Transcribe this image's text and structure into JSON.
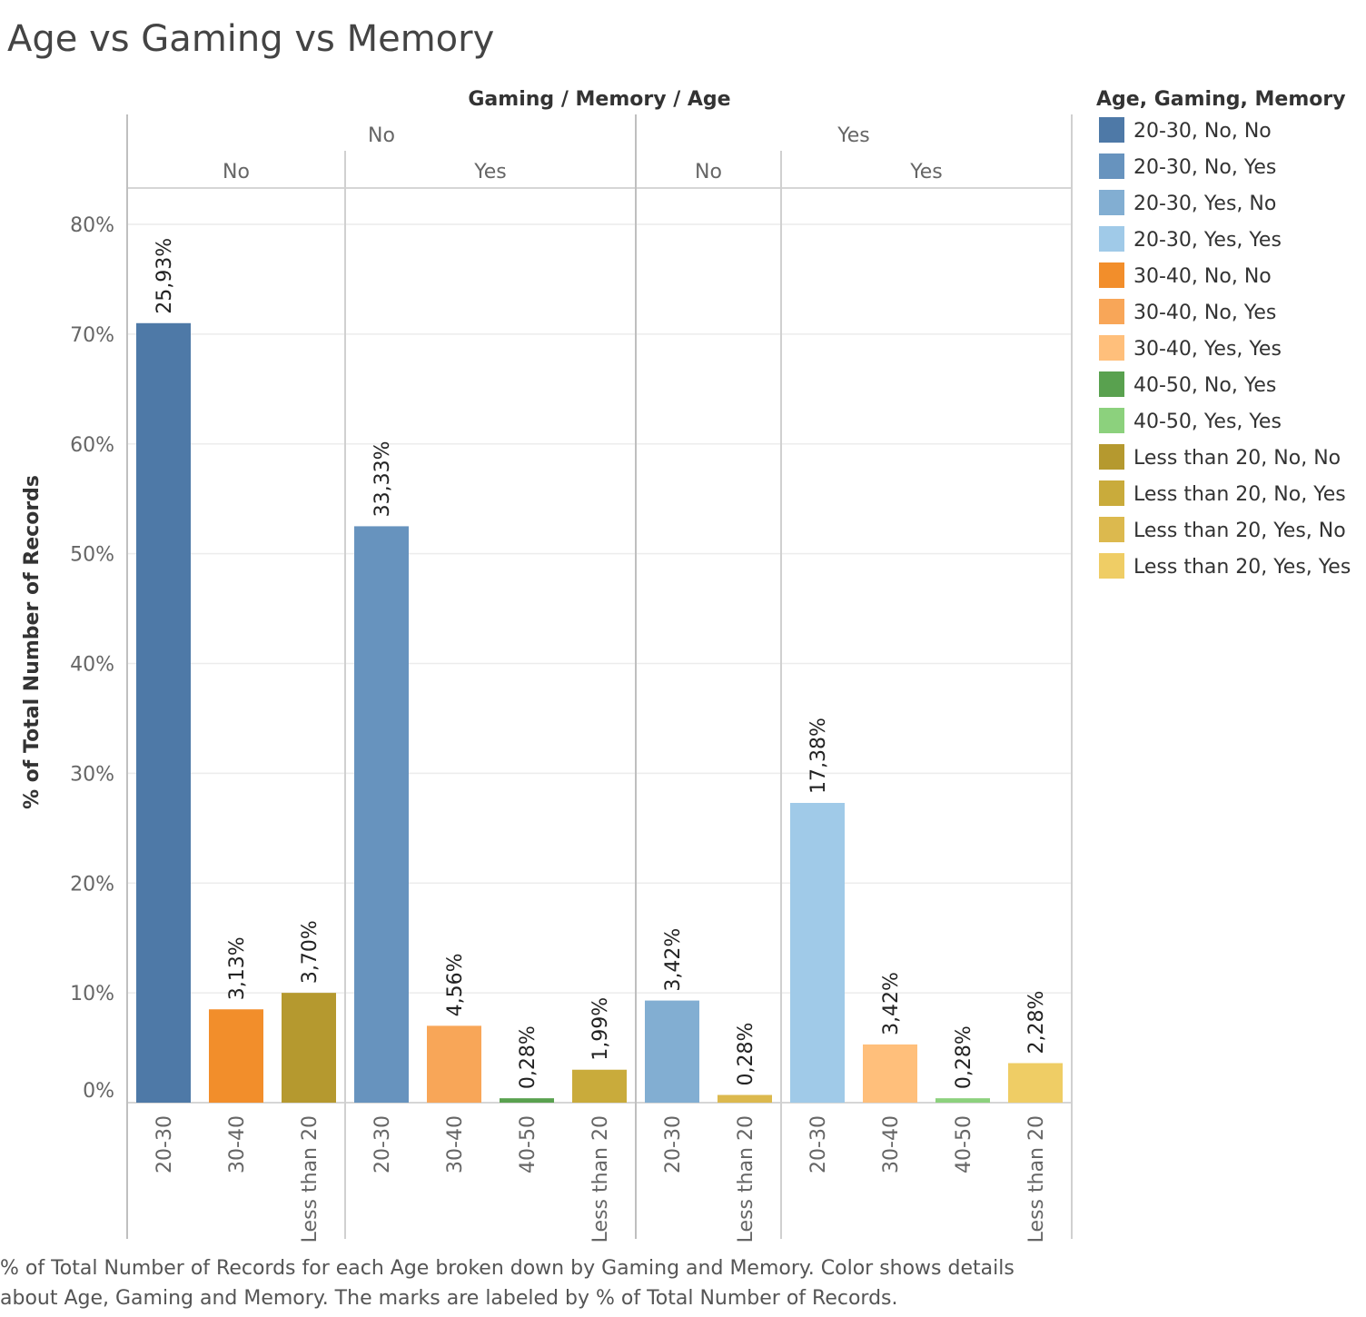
{
  "title": "Age vs Gaming vs Memory",
  "caption": "% of Total Number of Records for each Age broken down by Gaming and Memory.  Color shows details about Age, Gaming and Memory.  The marks are labeled by % of Total Number of Records.",
  "chart_data": {
    "type": "bar",
    "title": "Age vs Gaming vs Memory",
    "header_title": "Gaming  /  Memory  /  Age",
    "ylabel": "% of Total Number of Records",
    "ylim": [
      0,
      0.8
    ],
    "yticks": [
      "0%",
      "10%",
      "20%",
      "30%",
      "40%",
      "50%",
      "60%",
      "70%",
      "80%"
    ],
    "grid": true,
    "legend_position": "right",
    "legend_title": "Age, Gaming, Memory",
    "gaming_groups": [
      {
        "label": "No",
        "memory_groups": [
          {
            "label": "No",
            "bars": [
              {
                "age": "20-30",
                "value": 0.71,
                "label": "25,93%",
                "color": "#4e79a7",
                "series": "20-30, No, No"
              },
              {
                "age": "30-40",
                "value": 0.085,
                "label": "3,13%",
                "color": "#f28e2b",
                "series": "30-40, No, No"
              },
              {
                "age": "Less than 20",
                "value": 0.1,
                "label": "3,70%",
                "color": "#b5992f",
                "series": "Less than 20, No, No"
              }
            ]
          },
          {
            "label": "Yes",
            "bars": [
              {
                "age": "20-30",
                "value": 0.525,
                "label": "33,33%",
                "color": "#6793be",
                "series": "20-30, No, Yes"
              },
              {
                "age": "30-40",
                "value": 0.07,
                "label": "4,56%",
                "color": "#f8a658",
                "series": "30-40, No, Yes"
              },
              {
                "age": "40-50",
                "value": 0.004,
                "label": "0,28%",
                "color": "#59a14f",
                "series": "40-50, No, Yes"
              },
              {
                "age": "Less than 20",
                "value": 0.03,
                "label": "1,99%",
                "color": "#c9ab3b",
                "series": "Less than 20, No, Yes"
              }
            ]
          }
        ]
      },
      {
        "label": "Yes",
        "memory_groups": [
          {
            "label": "No",
            "bars": [
              {
                "age": "20-30",
                "value": 0.093,
                "label": "3,42%",
                "color": "#82aed2",
                "series": "20-30, Yes, No"
              },
              {
                "age": "Less than 20",
                "value": 0.007,
                "label": "0,28%",
                "color": "#dcb94e",
                "series": "Less than 20, Yes, No"
              }
            ]
          },
          {
            "label": "Yes",
            "bars": [
              {
                "age": "20-30",
                "value": 0.273,
                "label": "17,38%",
                "color": "#a0cae8",
                "series": "20-30, Yes, Yes"
              },
              {
                "age": "30-40",
                "value": 0.053,
                "label": "3,42%",
                "color": "#ffbf7b",
                "series": "30-40, Yes, Yes"
              },
              {
                "age": "40-50",
                "value": 0.004,
                "label": "0,28%",
                "color": "#8cd17d",
                "series": "40-50, Yes, Yes"
              },
              {
                "age": "Less than 20",
                "value": 0.036,
                "label": "2,28%",
                "color": "#efcd65",
                "series": "Less than 20, Yes, Yes"
              }
            ]
          }
        ]
      }
    ],
    "legend": [
      {
        "label": "20-30, No, No",
        "color": "#4e79a7"
      },
      {
        "label": "20-30, No, Yes",
        "color": "#6793be"
      },
      {
        "label": "20-30, Yes, No",
        "color": "#82aed2"
      },
      {
        "label": "20-30, Yes, Yes",
        "color": "#a0cae8"
      },
      {
        "label": "30-40, No, No",
        "color": "#f28e2b"
      },
      {
        "label": "30-40, No, Yes",
        "color": "#f8a658"
      },
      {
        "label": "30-40, Yes, Yes",
        "color": "#ffbf7b"
      },
      {
        "label": "40-50, No, Yes",
        "color": "#59a14f"
      },
      {
        "label": "40-50, Yes, Yes",
        "color": "#8cd17d"
      },
      {
        "label": "Less than 20, No, No",
        "color": "#b5992f"
      },
      {
        "label": "Less than 20, No, Yes",
        "color": "#c9ab3b"
      },
      {
        "label": "Less than 20, Yes, No",
        "color": "#dcb94e"
      },
      {
        "label": "Less than 20, Yes, Yes",
        "color": "#efcd65"
      }
    ]
  }
}
